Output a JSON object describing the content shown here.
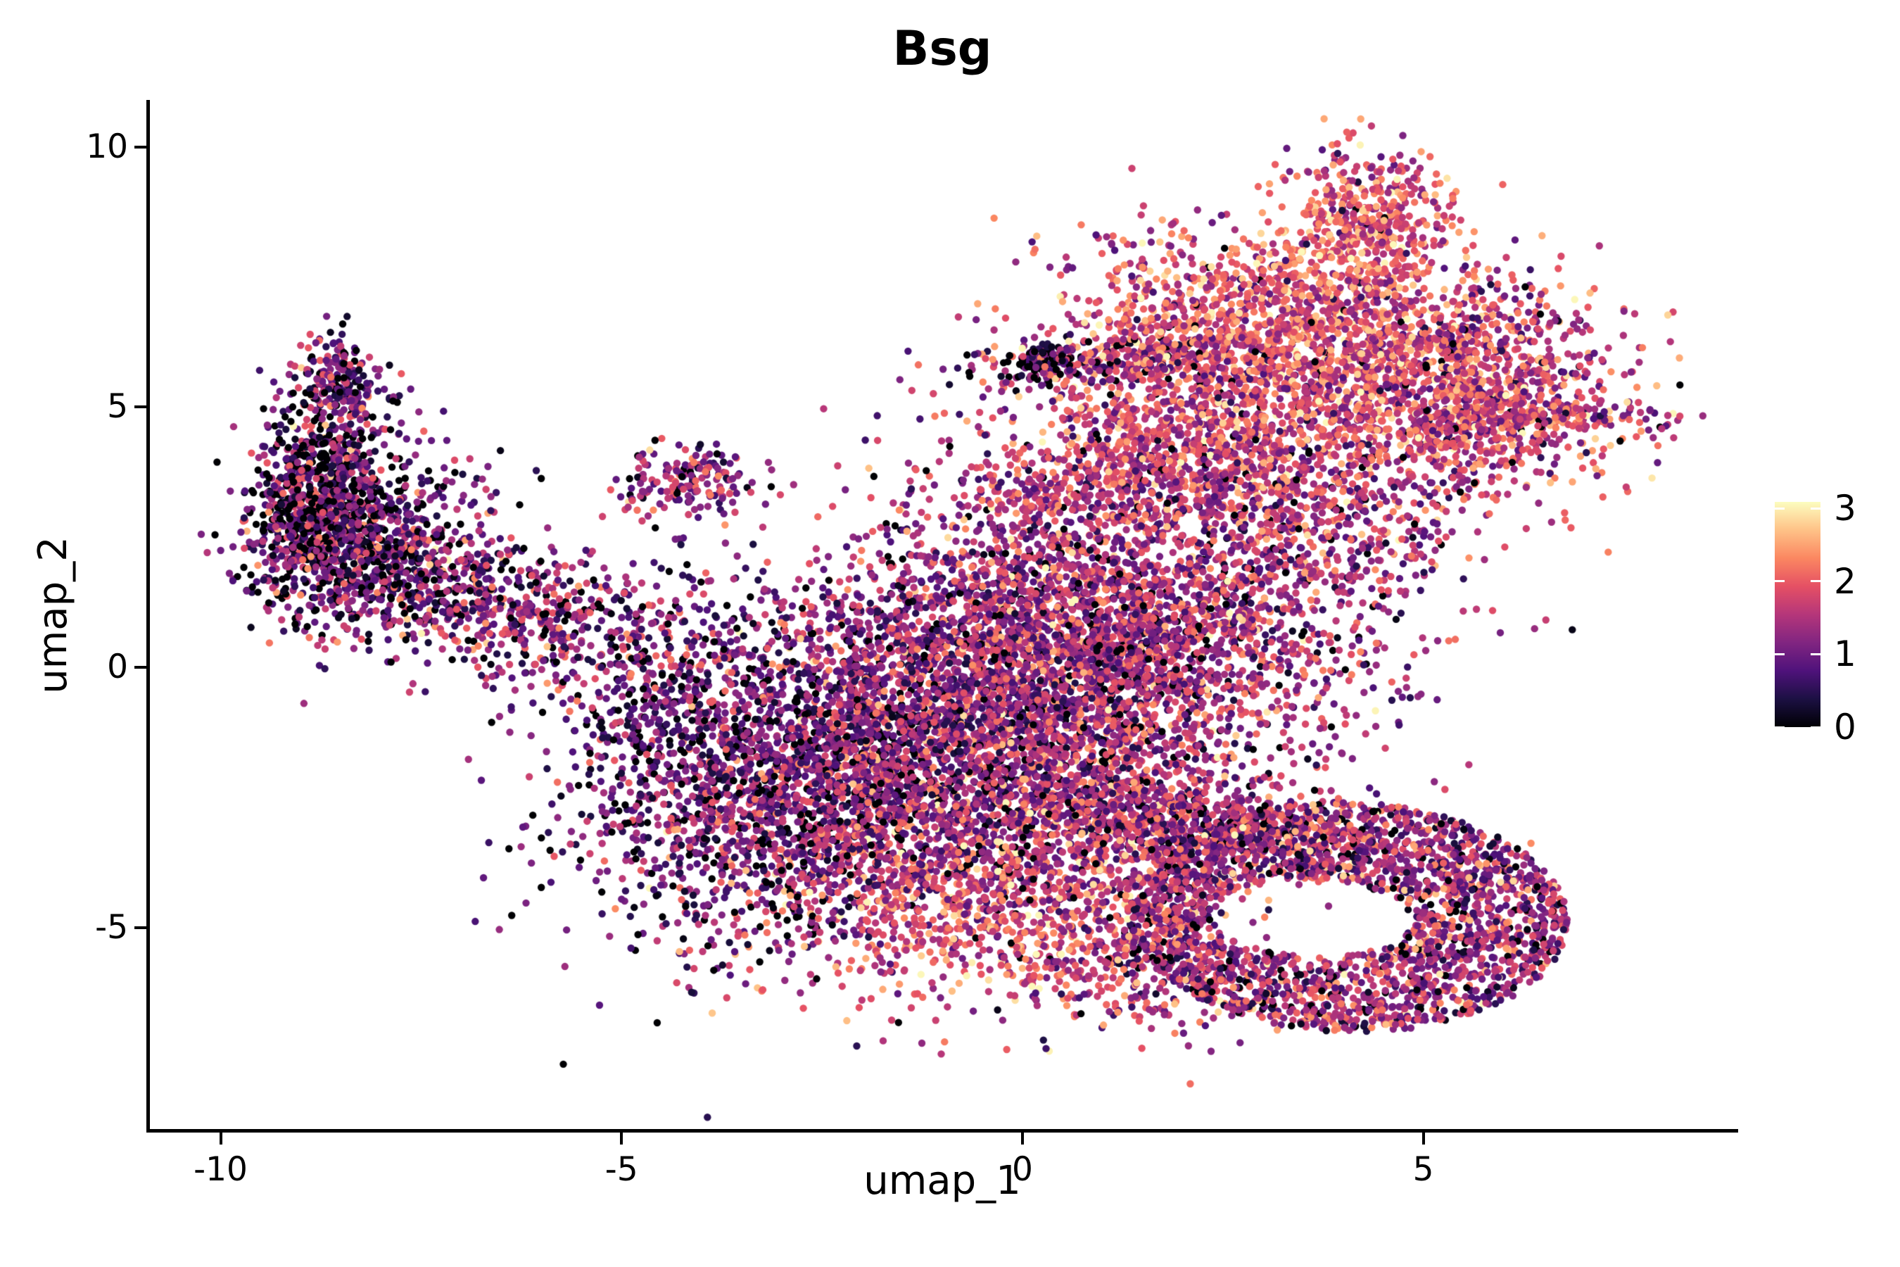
{
  "chart_data": {
    "type": "scatter",
    "title": "Bsg",
    "xlabel": "umap_1",
    "ylabel": "umap_2",
    "xlim": [
      -10.9,
      8.9
    ],
    "ylim": [
      -8.9,
      10.9
    ],
    "grid": false,
    "background": "#ffffff",
    "point_radius_px": 5.2,
    "seed": 20240613,
    "x_ticks": [
      {
        "value": -10,
        "label": "-10"
      },
      {
        "value": -5,
        "label": "-5"
      },
      {
        "value": 0,
        "label": "0"
      },
      {
        "value": 5,
        "label": "5"
      }
    ],
    "y_ticks": [
      {
        "value": -5,
        "label": "-5"
      },
      {
        "value": 0,
        "label": "0"
      },
      {
        "value": 5,
        "label": "5"
      },
      {
        "value": 10,
        "label": "10"
      }
    ],
    "colorbar": {
      "position": "right",
      "min": 0,
      "max": 3.09,
      "ticks": [
        {
          "value": 0,
          "label": "0"
        },
        {
          "value": 1,
          "label": "1"
        },
        {
          "value": 2,
          "label": "2"
        },
        {
          "value": 3,
          "label": "3"
        }
      ],
      "colormap": "magma",
      "stops": [
        [
          0.0,
          "#000004"
        ],
        [
          0.125,
          "#1c1043"
        ],
        [
          0.25,
          "#4f127b"
        ],
        [
          0.375,
          "#812581"
        ],
        [
          0.5,
          "#b5367a"
        ],
        [
          0.625,
          "#e55064"
        ],
        [
          0.75,
          "#fb8761"
        ],
        [
          0.875,
          "#fec287"
        ],
        [
          1.0,
          "#fcfdbf"
        ]
      ]
    },
    "clusters": [
      {
        "name": "left-arm-tip-top",
        "shape": "gauss",
        "n": 260,
        "cx": -8.55,
        "cy": 5.35,
        "sx": 0.3,
        "sy": 0.55,
        "rot": 0,
        "expr_mean": 1.0,
        "expr_sd": 0.7,
        "p_zero": 0.12
      },
      {
        "name": "left-arm-main",
        "shape": "gauss",
        "n": 950,
        "cx": -8.75,
        "cy": 3.1,
        "sx": 0.45,
        "sy": 0.95,
        "rot": 0,
        "expr_mean": 0.85,
        "expr_sd": 0.7,
        "p_zero": 0.18
      },
      {
        "name": "left-arm-inner",
        "shape": "gauss",
        "n": 550,
        "cx": -7.95,
        "cy": 2.2,
        "sx": 0.7,
        "sy": 0.85,
        "rot": -25,
        "expr_mean": 1.0,
        "expr_sd": 0.7,
        "p_zero": 0.12
      },
      {
        "name": "left-arm-spur",
        "shape": "gauss",
        "n": 420,
        "cx": -6.9,
        "cy": 1.35,
        "sx": 0.95,
        "sy": 0.5,
        "rot": -15,
        "expr_mean": 1.1,
        "expr_sd": 0.7,
        "p_zero": 0.08
      },
      {
        "name": "left-arm-trail",
        "shape": "gauss",
        "n": 200,
        "cx": -5.6,
        "cy": 0.45,
        "sx": 0.95,
        "sy": 0.75,
        "rot": 0,
        "expr_mean": 1.1,
        "expr_sd": 0.7,
        "p_zero": 0.06
      },
      {
        "name": "center-left",
        "shape": "gauss",
        "n": 2000,
        "cx": -2.9,
        "cy": -2.2,
        "sx": 1.3,
        "sy": 1.5,
        "rot": -20,
        "expr_mean": 1.0,
        "expr_sd": 0.6,
        "p_zero": 0.1
      },
      {
        "name": "center-mid",
        "shape": "gauss",
        "n": 2500,
        "cx": -0.6,
        "cy": -0.6,
        "sx": 1.5,
        "sy": 1.6,
        "rot": 0,
        "expr_mean": 1.25,
        "expr_sd": 0.65,
        "p_zero": 0.06
      },
      {
        "name": "center-right",
        "shape": "gauss",
        "n": 2300,
        "cx": 1.4,
        "cy": 0.7,
        "sx": 1.45,
        "sy": 1.35,
        "rot": 0,
        "expr_mean": 1.45,
        "expr_sd": 0.6,
        "p_zero": 0.04
      },
      {
        "name": "center-bottom",
        "shape": "gauss",
        "n": 1500,
        "cx": -0.3,
        "cy": -4.0,
        "sx": 1.6,
        "sy": 1.15,
        "rot": 10,
        "expr_mean": 1.75,
        "expr_sd": 0.6,
        "p_zero": 0.03
      },
      {
        "name": "center-top-finger",
        "shape": "gauss",
        "n": 480,
        "cx": 1.1,
        "cy": 3.4,
        "sx": 1.15,
        "sy": 0.5,
        "rot": 8,
        "expr_mean": 1.6,
        "expr_sd": 0.6,
        "p_zero": 0.03
      },
      {
        "name": "center-left-edge",
        "shape": "gauss",
        "n": 300,
        "cx": -4.35,
        "cy": -0.6,
        "sx": 0.7,
        "sy": 1.3,
        "rot": 0,
        "expr_mean": 1.0,
        "expr_sd": 0.65,
        "p_zero": 0.08
      },
      {
        "name": "bump-topleft",
        "shape": "gauss",
        "n": 170,
        "cx": -4.15,
        "cy": 3.55,
        "sx": 0.42,
        "sy": 0.34,
        "rot": 0,
        "expr_mean": 1.35,
        "expr_sd": 0.6,
        "p_zero": 0.05
      },
      {
        "name": "center-bottom-tail",
        "shape": "gauss",
        "n": 220,
        "cx": 1.2,
        "cy": -5.9,
        "sx": 1.0,
        "sy": 0.45,
        "rot": -12,
        "expr_mean": 1.6,
        "expr_sd": 0.6,
        "p_zero": 0.03
      },
      {
        "name": "topright-main",
        "shape": "gauss",
        "n": 1700,
        "cx": 3.3,
        "cy": 6.4,
        "sx": 1.35,
        "sy": 1.0,
        "rot": -10,
        "expr_mean": 1.9,
        "expr_sd": 0.55,
        "p_zero": 0.015
      },
      {
        "name": "topright-spike",
        "shape": "gauss",
        "n": 430,
        "cx": 4.35,
        "cy": 8.6,
        "sx": 0.5,
        "sy": 0.75,
        "rot": 0,
        "expr_mean": 1.9,
        "expr_sd": 0.55,
        "p_zero": 0.01
      },
      {
        "name": "topright-right-lobe",
        "shape": "gauss",
        "n": 1000,
        "cx": 5.35,
        "cy": 4.95,
        "sx": 1.05,
        "sy": 0.95,
        "rot": 0,
        "expr_mean": 1.7,
        "expr_sd": 0.6,
        "p_zero": 0.02
      },
      {
        "name": "topright-left-arm",
        "shape": "gauss",
        "n": 230,
        "cx": 0.95,
        "cy": 5.9,
        "sx": 0.85,
        "sy": 0.25,
        "rot": 5,
        "expr_mean": 1.3,
        "expr_sd": 0.7,
        "p_zero": 0.12
      },
      {
        "name": "topright-left-tip-dark",
        "shape": "gauss",
        "n": 60,
        "cx": 0.25,
        "cy": 5.85,
        "sx": 0.22,
        "sy": 0.18,
        "rot": 0,
        "expr_mean": 0.45,
        "expr_sd": 0.45,
        "p_zero": 0.35
      },
      {
        "name": "topright-bridge",
        "shape": "gauss",
        "n": 420,
        "cx": 2.3,
        "cy": 4.35,
        "sx": 1.25,
        "sy": 0.55,
        "rot": 5,
        "expr_mean": 1.75,
        "expr_sd": 0.6,
        "p_zero": 0.02
      },
      {
        "name": "right-tail",
        "shape": "gauss",
        "n": 150,
        "cx": 6.55,
        "cy": 4.85,
        "sx": 0.75,
        "sy": 0.12,
        "rot": 2,
        "expr_mean": 1.75,
        "expr_sd": 0.6,
        "p_zero": 0.02
      },
      {
        "name": "topright-scatter",
        "shape": "gauss",
        "n": 260,
        "cx": 1.6,
        "cy": 5.2,
        "sx": 1.0,
        "sy": 0.7,
        "rot": 0,
        "expr_mean": 1.6,
        "expr_sd": 0.6,
        "p_zero": 0.03
      },
      {
        "name": "topright-far-right",
        "shape": "gauss",
        "n": 180,
        "cx": 5.9,
        "cy": 6.3,
        "sx": 0.7,
        "sy": 0.8,
        "rot": 0,
        "expr_mean": 1.6,
        "expr_sd": 0.6,
        "p_zero": 0.03
      },
      {
        "name": "mid-right-fill",
        "shape": "gauss",
        "n": 500,
        "cx": 3.6,
        "cy": 2.9,
        "sx": 1.1,
        "sy": 0.9,
        "rot": -25,
        "expr_mean": 1.5,
        "expr_sd": 0.6,
        "p_zero": 0.04
      },
      {
        "name": "bottomright-ring",
        "shape": "annulus",
        "n": 2300,
        "cx": 4.05,
        "cy": -4.8,
        "rx": 2.75,
        "ry": 2.2,
        "hole_dx": -0.45,
        "hole_dy": -0.05,
        "hole_rx": 1.25,
        "hole_ry": 0.75,
        "rot": -5,
        "expr_mean": 1.35,
        "expr_sd": 0.65,
        "p_zero": 0.04
      },
      {
        "name": "ring-top-band",
        "shape": "gauss",
        "n": 650,
        "cx": 2.4,
        "cy": -3.05,
        "sx": 1.15,
        "sy": 0.42,
        "rot": -8,
        "expr_mean": 1.3,
        "expr_sd": 0.65,
        "p_zero": 0.05
      },
      {
        "name": "ring-left-sparse",
        "shape": "gauss",
        "n": 130,
        "cx": 1.55,
        "cy": -5.1,
        "sx": 0.55,
        "sy": 0.65,
        "rot": 0,
        "expr_mean": 1.4,
        "expr_sd": 0.6,
        "p_zero": 0.05
      },
      {
        "name": "bridge-center-ring",
        "shape": "gauss",
        "n": 200,
        "cx": 0.9,
        "cy": -2.3,
        "sx": 0.75,
        "sy": 0.65,
        "rot": 0,
        "expr_mean": 1.5,
        "expr_sd": 0.6,
        "p_zero": 0.04
      }
    ]
  }
}
